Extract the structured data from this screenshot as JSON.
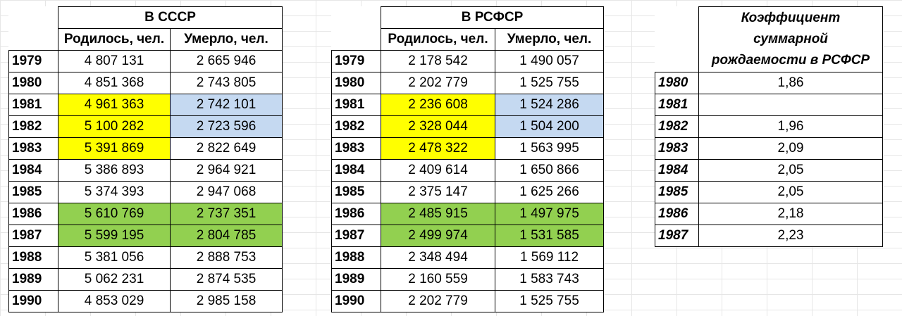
{
  "ussr": {
    "title": "В СССР",
    "col_born": "Родилось, чел.",
    "col_died": "Умерло, чел.",
    "rows": [
      {
        "year": "1979",
        "born": "4 807 131",
        "died": "2 665 946",
        "born_hl": "",
        "died_hl": ""
      },
      {
        "year": "1980",
        "born": "4 851 368",
        "died": "2 743 805",
        "born_hl": "",
        "died_hl": ""
      },
      {
        "year": "1981",
        "born": "4 961 363",
        "died": "2 742 101",
        "born_hl": "yellow",
        "died_hl": "blue"
      },
      {
        "year": "1982",
        "born": "5 100 282",
        "died": "2 723 596",
        "born_hl": "yellow",
        "died_hl": "blue"
      },
      {
        "year": "1983",
        "born": "5 391 869",
        "died": "2 822 649",
        "born_hl": "yellow",
        "died_hl": ""
      },
      {
        "year": "1984",
        "born": "5 386 893",
        "died": "2 964 921",
        "born_hl": "",
        "died_hl": ""
      },
      {
        "year": "1985",
        "born": "5 374 393",
        "died": "2 947 068",
        "born_hl": "",
        "died_hl": ""
      },
      {
        "year": "1986",
        "born": "5 610 769",
        "died": "2 737 351",
        "born_hl": "green",
        "died_hl": "green"
      },
      {
        "year": "1987",
        "born": "5 599 195",
        "died": "2 804 785",
        "born_hl": "green",
        "died_hl": "green"
      },
      {
        "year": "1988",
        "born": "5 381 056",
        "died": "2 888 753",
        "born_hl": "",
        "died_hl": ""
      },
      {
        "year": "1989",
        "born": "5 062 231",
        "died": "2 874 535",
        "born_hl": "",
        "died_hl": ""
      },
      {
        "year": "1990",
        "born": "4 853 029",
        "died": "2 985 158",
        "born_hl": "",
        "died_hl": ""
      }
    ]
  },
  "rsfsr": {
    "title": "В РСФСР",
    "col_born": "Родилось, чел.",
    "col_died": "Умерло, чел.",
    "rows": [
      {
        "year": "1979",
        "born": "2 178 542",
        "died": "1 490 057",
        "born_hl": "",
        "died_hl": ""
      },
      {
        "year": "1980",
        "born": "2 202 779",
        "died": "1 525 755",
        "born_hl": "",
        "died_hl": ""
      },
      {
        "year": "1981",
        "born": "2 236 608",
        "died": "1 524 286",
        "born_hl": "yellow",
        "died_hl": "blue"
      },
      {
        "year": "1982",
        "born": "2 328 044",
        "died": "1 504 200",
        "born_hl": "yellow",
        "died_hl": "blue"
      },
      {
        "year": "1983",
        "born": "2 478 322",
        "died": "1 563 995",
        "born_hl": "yellow",
        "died_hl": ""
      },
      {
        "year": "1984",
        "born": "2 409 614",
        "died": "1 650 866",
        "born_hl": "",
        "died_hl": ""
      },
      {
        "year": "1985",
        "born": "2 375 147",
        "died": "1 625 266",
        "born_hl": "",
        "died_hl": ""
      },
      {
        "year": "1986",
        "born": "2 485 915",
        "died": "1 497 975",
        "born_hl": "green",
        "died_hl": "green"
      },
      {
        "year": "1987",
        "born": "2 499 974",
        "died": "1 531 585",
        "born_hl": "green",
        "died_hl": "green"
      },
      {
        "year": "1988",
        "born": "2 348 494",
        "died": "1 569 112",
        "born_hl": "",
        "died_hl": ""
      },
      {
        "year": "1989",
        "born": "2 160 559",
        "died": "1 583 743",
        "born_hl": "",
        "died_hl": ""
      },
      {
        "year": "1990",
        "born": "2 202 779",
        "died": "1 525 755",
        "born_hl": "",
        "died_hl": ""
      }
    ]
  },
  "tfr": {
    "title_line1": "Коэффициент",
    "title_line2": "суммарной",
    "title_line3": "рождаемости в РСФСР",
    "rows": [
      {
        "year": "1980",
        "value": "1,86"
      },
      {
        "year": "1981",
        "value": ""
      },
      {
        "year": "1982",
        "value": "1,96"
      },
      {
        "year": "1983",
        "value": "2,09"
      },
      {
        "year": "1984",
        "value": "2,05"
      },
      {
        "year": "1985",
        "value": "2,05"
      },
      {
        "year": "1986",
        "value": "2,18"
      },
      {
        "year": "1987",
        "value": "2,23"
      }
    ]
  },
  "colors": {
    "yellow": "#ffff00",
    "blue": "#c5d9f1",
    "green": "#92d050"
  }
}
